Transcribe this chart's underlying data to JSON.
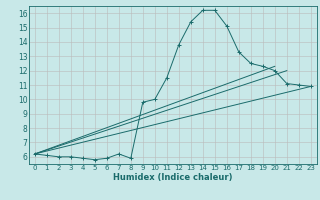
{
  "title": "",
  "xlabel": "Humidex (Indice chaleur)",
  "bg_color": "#c8e8e8",
  "grid_color_major": "#b0b0b0",
  "grid_color_minor": "#d0d0d0",
  "line_color": "#1a6b6b",
  "xlim": [
    -0.5,
    23.5
  ],
  "ylim": [
    5.5,
    16.5
  ],
  "x_ticks": [
    0,
    1,
    2,
    3,
    4,
    5,
    6,
    7,
    8,
    9,
    10,
    11,
    12,
    13,
    14,
    15,
    16,
    17,
    18,
    19,
    20,
    21,
    22,
    23
  ],
  "y_ticks": [
    6,
    7,
    8,
    9,
    10,
    11,
    12,
    13,
    14,
    15,
    16
  ],
  "curve_x": [
    0,
    1,
    2,
    3,
    4,
    5,
    6,
    7,
    8,
    9,
    10,
    11,
    12,
    13,
    14,
    15,
    16,
    17,
    18,
    19,
    20,
    21,
    22,
    23
  ],
  "curve_y": [
    6.2,
    6.1,
    6.0,
    6.0,
    5.9,
    5.8,
    5.9,
    6.2,
    5.9,
    9.8,
    10.0,
    11.5,
    13.8,
    15.4,
    16.2,
    16.2,
    15.1,
    13.3,
    12.5,
    12.3,
    12.0,
    11.1,
    11.0,
    10.9
  ],
  "line1_x": [
    0,
    23
  ],
  "line1_y": [
    6.2,
    10.9
  ],
  "line2_x": [
    0,
    21
  ],
  "line2_y": [
    6.2,
    12.0
  ],
  "line3_x": [
    0,
    20
  ],
  "line3_y": [
    6.2,
    12.3
  ]
}
